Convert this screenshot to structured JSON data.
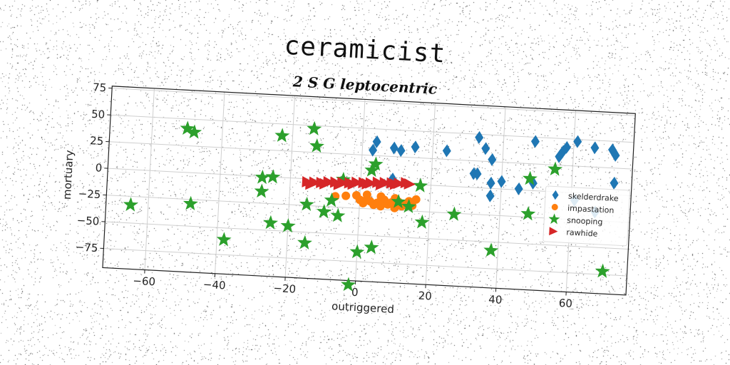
{
  "title": "ceramicist",
  "subtitle": "2 S G leptocentric",
  "chart_data": {
    "type": "scatter",
    "xlabel": "outriggered",
    "ylabel": "mortuary",
    "xlim": [
      -72,
      77
    ],
    "ylim": [
      -93,
      77
    ],
    "xticks": [
      -60,
      -40,
      -20,
      0,
      20,
      40,
      60
    ],
    "yticks": [
      75,
      50,
      25,
      0,
      -25,
      -50,
      -75
    ],
    "grid": true,
    "legend": "center-right",
    "series": [
      {
        "name": "skelderdrake",
        "marker": "diamond",
        "color": "#1f77b4",
        "points": [
          [
            3,
            30
          ],
          [
            4,
            38
          ],
          [
            9,
            4
          ],
          [
            9,
            33
          ],
          [
            11,
            31
          ],
          [
            15,
            35
          ],
          [
            24,
            33
          ],
          [
            32,
            13
          ],
          [
            33,
            13
          ],
          [
            33,
            47
          ],
          [
            35,
            37
          ],
          [
            37,
            27
          ],
          [
            37,
            5
          ],
          [
            37,
            -7
          ],
          [
            40,
            7
          ],
          [
            45,
            1
          ],
          [
            49,
            7
          ],
          [
            49,
            46
          ],
          [
            56,
            33
          ],
          [
            57,
            38
          ],
          [
            58,
            42
          ],
          [
            61,
            48
          ],
          [
            66,
            43
          ],
          [
            71,
            42
          ],
          [
            72,
            37
          ],
          [
            72,
            11
          ],
          [
            61,
            -7
          ],
          [
            67,
            -17
          ]
        ]
      },
      {
        "name": "impastation",
        "marker": "circle",
        "color": "#ff7f0e",
        "points": [
          [
            -7,
            -15
          ],
          [
            -1,
            -13
          ],
          [
            0,
            -17
          ],
          [
            1,
            -20
          ],
          [
            2,
            -16
          ],
          [
            3,
            -18
          ],
          [
            4,
            -21
          ],
          [
            5,
            -19
          ],
          [
            6,
            -22
          ],
          [
            7,
            -16
          ],
          [
            8,
            -20
          ],
          [
            9,
            -18
          ],
          [
            10,
            -23
          ],
          [
            11,
            -17
          ],
          [
            12,
            -21
          ],
          [
            13,
            -19
          ],
          [
            14,
            -16
          ],
          [
            15,
            -20
          ],
          [
            16,
            -14
          ],
          [
            -4,
            -14
          ],
          [
            2,
            -12
          ],
          [
            6,
            -13
          ],
          [
            10,
            -14
          ]
        ]
      },
      {
        "name": "snooping",
        "marker": "star",
        "color": "#2ca02c",
        "points": [
          [
            -65,
            -33
          ],
          [
            -50,
            41
          ],
          [
            -48,
            38
          ],
          [
            -48,
            -29
          ],
          [
            -38,
            -61
          ],
          [
            -28,
            -1
          ],
          [
            -28,
            -14
          ],
          [
            -25,
            0
          ],
          [
            -25,
            -43
          ],
          [
            -23,
            39
          ],
          [
            -20,
            -45
          ],
          [
            -15,
            -60
          ],
          [
            -15,
            -24
          ],
          [
            -14,
            47
          ],
          [
            -13,
            31
          ],
          [
            -10,
            -30
          ],
          [
            -8,
            -19
          ],
          [
            -5,
            1
          ],
          [
            -6,
            -33
          ],
          [
            0,
            -66
          ],
          [
            -2,
            -97
          ],
          [
            3,
            11
          ],
          [
            4,
            17
          ],
          [
            4,
            -61
          ],
          [
            11,
            -17
          ],
          [
            14,
            -21
          ],
          [
            17,
            -1
          ],
          [
            18,
            -35
          ],
          [
            27,
            -26
          ],
          [
            38,
            -58
          ],
          [
            48,
            11
          ],
          [
            48,
            -22
          ],
          [
            55,
            21
          ],
          [
            70,
            -72
          ]
        ]
      },
      {
        "name": "rawhide",
        "marker": "triangle-right",
        "color": "#d62728",
        "points": [
          [
            -15,
            -3
          ],
          [
            -13,
            -3
          ],
          [
            -11,
            -3
          ],
          [
            -9,
            -2
          ],
          [
            -7,
            -2
          ],
          [
            -5,
            -2
          ],
          [
            -3,
            -2
          ],
          [
            -1,
            -1
          ],
          [
            1,
            -1
          ],
          [
            3,
            -1
          ],
          [
            5,
            0
          ],
          [
            7,
            0
          ],
          [
            9,
            0
          ],
          [
            11,
            0
          ],
          [
            13,
            1
          ],
          [
            -14,
            -5
          ],
          [
            -10,
            -4
          ],
          [
            -6,
            -4
          ],
          [
            -2,
            -3
          ],
          [
            2,
            -2
          ],
          [
            6,
            -2
          ],
          [
            10,
            -1
          ],
          [
            14,
            0
          ]
        ]
      }
    ]
  }
}
